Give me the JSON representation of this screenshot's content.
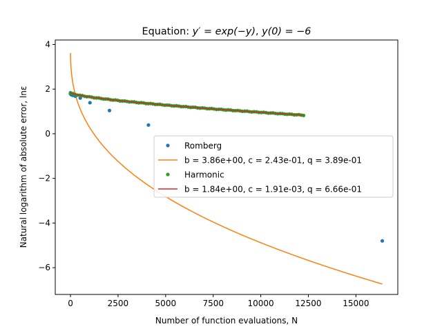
{
  "chart_data": {
    "type": "scatter",
    "title": "Equation: y′ = exp(−y), y(0) = −6",
    "title_parts": {
      "prefix": "Equation: ",
      "math1": "y′ = exp(−y)",
      "sep": ", ",
      "math2": "y(0) = −6"
    },
    "xlabel": "Number of function evaluations, N",
    "ylabel": "Natural logarithm of absolute error, lnε",
    "xlim": [
      -800,
      17200
    ],
    "ylim": [
      -7.2,
      4.2
    ],
    "xticks": [
      0,
      2500,
      5000,
      7500,
      10000,
      12500,
      15000
    ],
    "yticks": [
      -6,
      -4,
      -2,
      0,
      2,
      4
    ],
    "grid": false,
    "legend_position": "center-right",
    "series": [
      {
        "name": "Romberg",
        "kind": "points",
        "color": "#1f77b4",
        "x": [
          1,
          3,
          5,
          9,
          17,
          33,
          65,
          129,
          257,
          513,
          1025,
          2049,
          4097,
          16385
        ],
        "y": [
          1.8,
          1.8,
          1.79,
          1.78,
          1.77,
          1.76,
          1.74,
          1.72,
          1.68,
          1.6,
          1.39,
          1.04,
          0.39,
          -4.8
        ]
      },
      {
        "name": "b = 3.86e+00, c = 2.43e-01, q = 3.89e-01",
        "kind": "fit",
        "color": "#ff7f0e",
        "b": 3.86,
        "c": 0.243,
        "q": 0.389,
        "x_range": [
          1,
          16385
        ]
      },
      {
        "name": "Harmonic",
        "kind": "points",
        "color": "#2ca02c",
        "x_range": [
          1,
          12251
        ],
        "n_points": 100
      },
      {
        "name": "b = 1.84e+00, c = 1.91e-03, q = 6.66e-01",
        "kind": "fit",
        "color": "#d62728",
        "b": 1.84,
        "c": 0.00191,
        "q": 0.666,
        "x_range": [
          1,
          12251
        ]
      }
    ]
  }
}
